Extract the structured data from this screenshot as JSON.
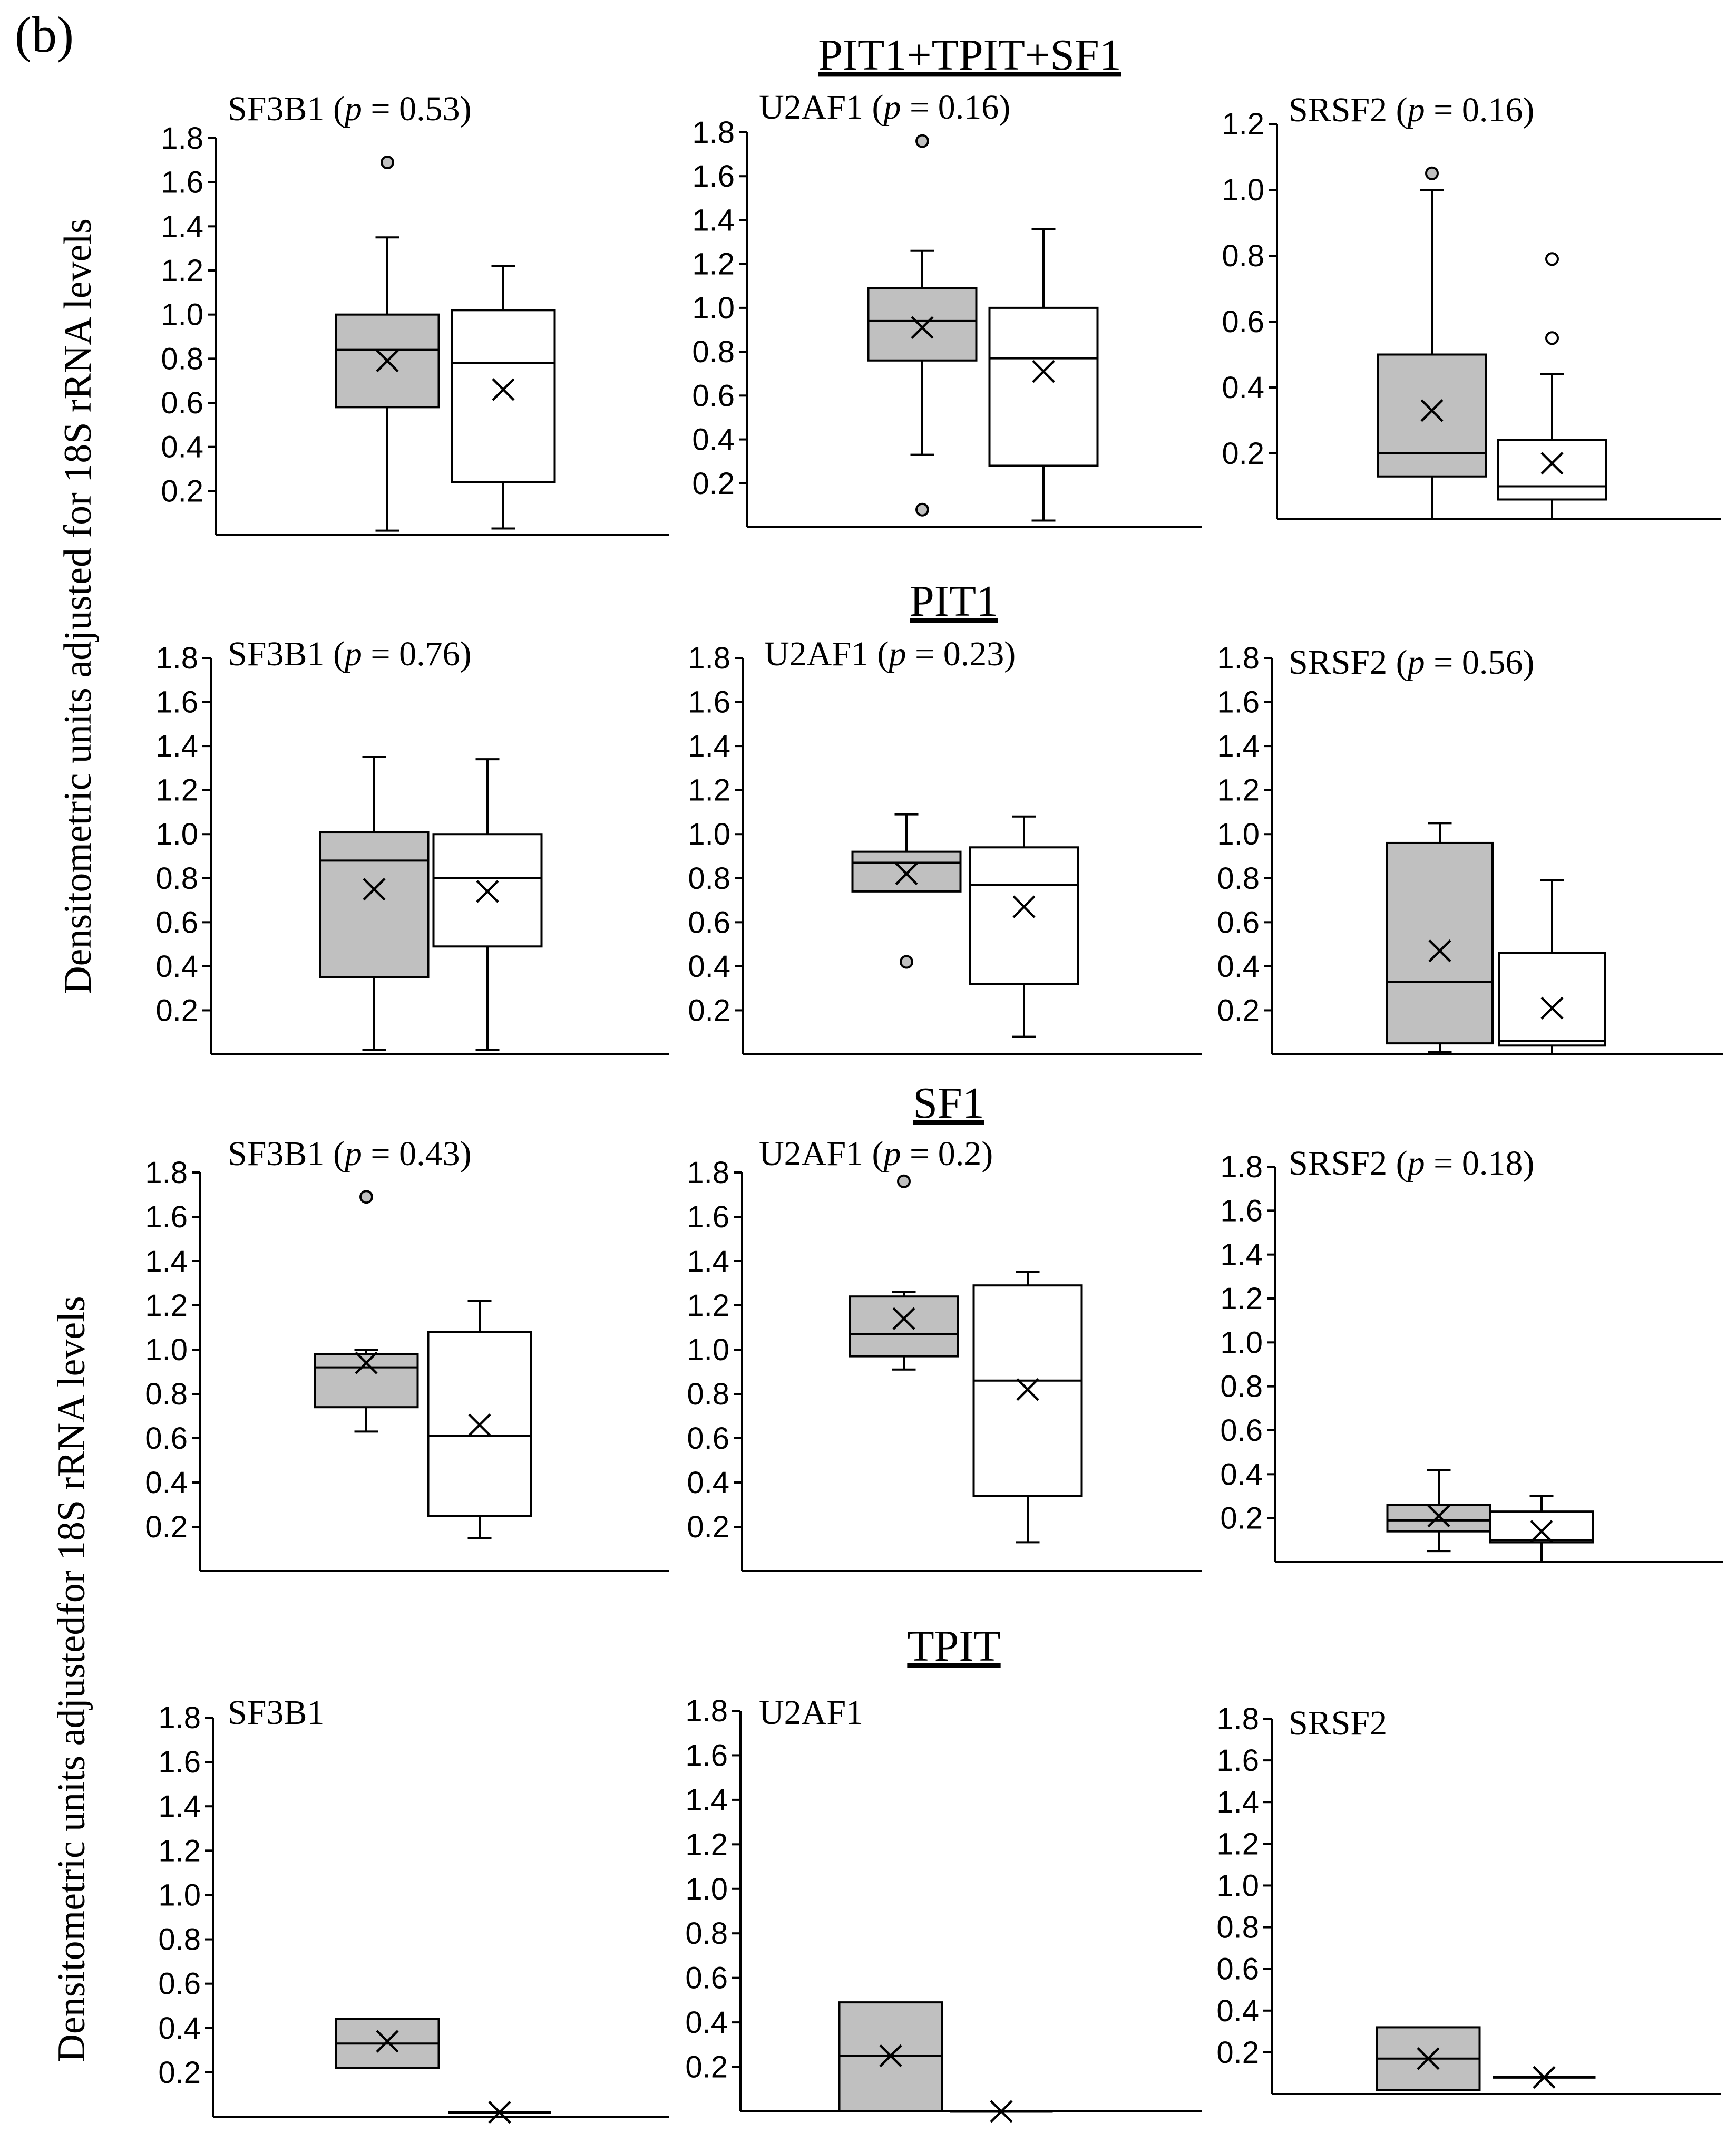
{
  "figure": {
    "panel_label": "(b)",
    "ylabel_top": "Densitometric units adjusted for 18S rRNA levels",
    "ylabel_bottom": "Densitometric units adjustedfor 18S rRNA levels"
  },
  "colors": {
    "group_a_fill": "#c0c0c0",
    "group_b_fill": "#ffffff",
    "stroke": "#000000"
  },
  "chart_data": [
    {
      "group": "PIT1+TPIT+SF1",
      "panels": [
        {
          "type": "box",
          "gene": "SF3B1",
          "p_text": "0.53",
          "ylim": [
            0,
            1.8
          ],
          "yticks": [
            "0.2",
            "0.4",
            "0.6",
            "0.8",
            "1.0",
            "1.2",
            "1.4",
            "1.6",
            "1.8"
          ],
          "boxes": [
            {
              "series": "gray",
              "lower_whisker": 0.02,
              "q1": 0.58,
              "median": 0.84,
              "q3": 1.0,
              "upper_whisker": 1.35,
              "mean": 0.79,
              "outliers": [
                1.69
              ]
            },
            {
              "series": "white",
              "lower_whisker": 0.03,
              "q1": 0.24,
              "median": 0.78,
              "q3": 1.02,
              "upper_whisker": 1.22,
              "mean": 0.66,
              "outliers": []
            }
          ]
        },
        {
          "type": "box",
          "gene": "U2AF1",
          "p_text": "0.16",
          "ylim": [
            0,
            1.8
          ],
          "yticks": [
            "0.2",
            "0.4",
            "0.6",
            "0.8",
            "1.0",
            "1.2",
            "1.4",
            "1.6",
            "1.8"
          ],
          "boxes": [
            {
              "series": "gray",
              "lower_whisker": 0.33,
              "q1": 0.76,
              "median": 0.94,
              "q3": 1.09,
              "upper_whisker": 1.26,
              "mean": 0.91,
              "outliers": [
                0.08,
                1.76
              ]
            },
            {
              "series": "white",
              "lower_whisker": 0.03,
              "q1": 0.28,
              "median": 0.77,
              "q3": 1.0,
              "upper_whisker": 1.36,
              "mean": 0.71,
              "outliers": []
            }
          ]
        },
        {
          "type": "box",
          "gene": "SRSF2",
          "p_text": "0.16",
          "ylim": [
            0,
            1.2
          ],
          "yticks": [
            "0.2",
            "0.4",
            "0.6",
            "0.8",
            "1.0",
            "1.2"
          ],
          "boxes": [
            {
              "series": "gray",
              "lower_whisker": 0.0,
              "q1": 0.13,
              "median": 0.2,
              "q3": 0.5,
              "upper_whisker": 1.0,
              "mean": 0.33,
              "outliers": [
                1.05
              ]
            },
            {
              "series": "white",
              "lower_whisker": 0.0,
              "q1": 0.06,
              "median": 0.1,
              "q3": 0.24,
              "upper_whisker": 0.44,
              "mean": 0.17,
              "outliers": [
                0.55,
                0.79
              ]
            }
          ]
        }
      ]
    },
    {
      "group": "PIT1",
      "panels": [
        {
          "type": "box",
          "gene": "SF3B1",
          "p_text": "0.76",
          "ylim": [
            0,
            1.8
          ],
          "yticks": [
            "0.2",
            "0.4",
            "0.6",
            "0.8",
            "1.0",
            "1.2",
            "1.4",
            "1.6",
            "1.8"
          ],
          "boxes": [
            {
              "series": "gray",
              "lower_whisker": 0.02,
              "q1": 0.35,
              "median": 0.88,
              "q3": 1.01,
              "upper_whisker": 1.35,
              "mean": 0.75,
              "outliers": []
            },
            {
              "series": "white",
              "lower_whisker": 0.02,
              "q1": 0.49,
              "median": 0.8,
              "q3": 1.0,
              "upper_whisker": 1.34,
              "mean": 0.74,
              "outliers": []
            }
          ]
        },
        {
          "type": "box",
          "gene": "U2AF1",
          "p_text": "0.23",
          "ylim": [
            0,
            1.8
          ],
          "yticks": [
            "0.2",
            "0.4",
            "0.6",
            "0.8",
            "1.0",
            "1.2",
            "1.4",
            "1.6",
            "1.8"
          ],
          "boxes": [
            {
              "series": "gray",
              "lower_whisker": 0.74,
              "q1": 0.74,
              "median": 0.87,
              "q3": 0.92,
              "upper_whisker": 1.09,
              "mean": 0.82,
              "outliers": [
                0.42
              ]
            },
            {
              "series": "white",
              "lower_whisker": 0.08,
              "q1": 0.32,
              "median": 0.77,
              "q3": 0.94,
              "upper_whisker": 1.08,
              "mean": 0.67,
              "outliers": []
            }
          ]
        },
        {
          "type": "box",
          "gene": "SRSF2",
          "p_text": "0.56",
          "ylim": [
            0,
            1.8
          ],
          "yticks": [
            "0.2",
            "0.4",
            "0.6",
            "0.8",
            "1.0",
            "1.2",
            "1.4",
            "1.6",
            "1.8"
          ],
          "boxes": [
            {
              "series": "gray",
              "lower_whisker": 0.01,
              "q1": 0.05,
              "median": 0.33,
              "q3": 0.96,
              "upper_whisker": 1.05,
              "mean": 0.47,
              "outliers": []
            },
            {
              "series": "white",
              "lower_whisker": 0.0,
              "q1": 0.04,
              "median": 0.06,
              "q3": 0.46,
              "upper_whisker": 0.79,
              "mean": 0.21,
              "outliers": []
            }
          ]
        }
      ]
    },
    {
      "group": "SF1",
      "panels": [
        {
          "type": "box",
          "gene": "SF3B1",
          "p_text": "0.43",
          "ylim": [
            0,
            1.8
          ],
          "yticks": [
            "0.2",
            "0.4",
            "0.6",
            "0.8",
            "1.0",
            "1.2",
            "1.4",
            "1.6",
            "1.8"
          ],
          "boxes": [
            {
              "series": "gray",
              "lower_whisker": 0.63,
              "q1": 0.74,
              "median": 0.92,
              "q3": 0.98,
              "upper_whisker": 1.0,
              "mean": 0.94,
              "outliers": [
                1.69
              ]
            },
            {
              "series": "white",
              "lower_whisker": 0.15,
              "q1": 0.25,
              "median": 0.61,
              "q3": 1.08,
              "upper_whisker": 1.22,
              "mean": 0.66,
              "outliers": []
            }
          ]
        },
        {
          "type": "box",
          "gene": "U2AF1",
          "p_text": "0.2",
          "ylim": [
            0,
            1.8
          ],
          "yticks": [
            "0.2",
            "0.4",
            "0.6",
            "0.8",
            "1.0",
            "1.2",
            "1.4",
            "1.6",
            "1.8"
          ],
          "boxes": [
            {
              "series": "gray",
              "lower_whisker": 0.91,
              "q1": 0.97,
              "median": 1.07,
              "q3": 1.24,
              "upper_whisker": 1.26,
              "mean": 1.14,
              "outliers": [
                1.76
              ]
            },
            {
              "series": "white",
              "lower_whisker": 0.13,
              "q1": 0.34,
              "median": 0.86,
              "q3": 1.29,
              "upper_whisker": 1.35,
              "mean": 0.82,
              "outliers": []
            }
          ]
        },
        {
          "type": "box",
          "gene": "SRSF2",
          "p_text": "0.18",
          "ylim": [
            0,
            1.8
          ],
          "yticks": [
            "0.2",
            "0.4",
            "0.6",
            "0.8",
            "1.0",
            "1.2",
            "1.4",
            "1.6",
            "1.8"
          ],
          "boxes": [
            {
              "series": "gray",
              "lower_whisker": 0.05,
              "q1": 0.14,
              "median": 0.19,
              "q3": 0.26,
              "upper_whisker": 0.42,
              "mean": 0.21,
              "outliers": []
            },
            {
              "series": "white",
              "lower_whisker": 0.0,
              "q1": 0.09,
              "median": 0.1,
              "q3": 0.23,
              "upper_whisker": 0.3,
              "mean": 0.14,
              "outliers": []
            }
          ]
        }
      ]
    },
    {
      "group": "TPIT",
      "panels": [
        {
          "type": "box",
          "gene": "SF3B1",
          "p_text": "",
          "ylim": [
            0,
            1.8
          ],
          "yticks": [
            "0.2",
            "0.4",
            "0.6",
            "0.8",
            "1.0",
            "1.2",
            "1.4",
            "1.6",
            "1.8"
          ],
          "boxes": [
            {
              "series": "gray",
              "lower_whisker": 0.22,
              "q1": 0.22,
              "median": 0.33,
              "q3": 0.44,
              "upper_whisker": 0.44,
              "mean": 0.34,
              "outliers": []
            },
            {
              "series": "white",
              "lower_whisker": 0.02,
              "q1": 0.02,
              "median": 0.02,
              "q3": 0.02,
              "upper_whisker": 0.02,
              "mean": 0.02,
              "outliers": []
            }
          ]
        },
        {
          "type": "box",
          "gene": "U2AF1",
          "p_text": "",
          "ylim": [
            0,
            1.8
          ],
          "yticks": [
            "0.2",
            "0.4",
            "0.6",
            "0.8",
            "1.0",
            "1.2",
            "1.4",
            "1.6",
            "1.8"
          ],
          "boxes": [
            {
              "series": "gray",
              "lower_whisker": 0.0,
              "q1": 0.0,
              "median": 0.25,
              "q3": 0.49,
              "upper_whisker": 0.49,
              "mean": 0.25,
              "outliers": []
            },
            {
              "series": "white",
              "lower_whisker": 0.0,
              "q1": 0.0,
              "median": 0.0,
              "q3": 0.0,
              "upper_whisker": 0.0,
              "mean": 0.0,
              "outliers": []
            }
          ]
        },
        {
          "type": "box",
          "gene": "SRSF2",
          "p_text": "",
          "ylim": [
            0,
            1.8
          ],
          "yticks": [
            "0.2",
            "0.4",
            "0.6",
            "0.8",
            "1.0",
            "1.2",
            "1.4",
            "1.6",
            "1.8"
          ],
          "boxes": [
            {
              "series": "gray",
              "lower_whisker": 0.02,
              "q1": 0.02,
              "median": 0.17,
              "q3": 0.32,
              "upper_whisker": 0.32,
              "mean": 0.17,
              "outliers": []
            },
            {
              "series": "white",
              "lower_whisker": 0.08,
              "q1": 0.08,
              "median": 0.08,
              "q3": 0.08,
              "upper_whisker": 0.08,
              "mean": 0.08,
              "outliers": []
            }
          ]
        }
      ]
    }
  ]
}
